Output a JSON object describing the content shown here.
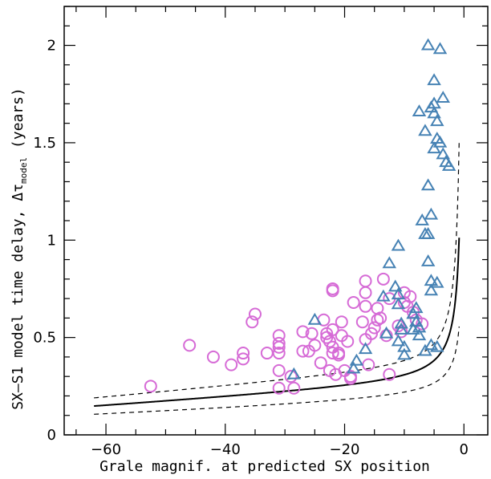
{
  "chart_data": {
    "type": "scatter",
    "xlabel": "Grale magnif. at predicted SX position",
    "ylabel_prefix": "SX–S1 model time delay, Δτ",
    "ylabel_subscript": "model",
    "ylabel_suffix": " (years)",
    "xlim": [
      -67,
      4
    ],
    "ylim": [
      0,
      2.2
    ],
    "x_ticks": [
      -60,
      -40,
      -20,
      0
    ],
    "y_ticks": [
      0,
      0.5,
      1,
      1.5,
      2
    ],
    "x_tick_labels": [
      "−60",
      "−40",
      "−20",
      "0"
    ],
    "y_tick_labels": [
      "0",
      "0.5",
      "1",
      "1.5",
      "2"
    ],
    "grid": false,
    "legend": "none",
    "colors": {
      "circles": "#d66bd6",
      "triangles": "#4682b4",
      "curve": "#000000"
    },
    "series": [
      {
        "marker": "circle",
        "points": [
          [
            -52.5,
            0.25
          ],
          [
            -46,
            0.46
          ],
          [
            -42,
            0.4
          ],
          [
            -39,
            0.36
          ],
          [
            -37,
            0.42
          ],
          [
            -37,
            0.39
          ],
          [
            -35,
            0.62
          ],
          [
            -35.5,
            0.58
          ],
          [
            -33,
            0.42
          ],
          [
            -31,
            0.51
          ],
          [
            -31,
            0.47
          ],
          [
            -31,
            0.45
          ],
          [
            -31,
            0.42
          ],
          [
            -31,
            0.33
          ],
          [
            -31,
            0.24
          ],
          [
            -28.5,
            0.24
          ],
          [
            -29,
            0.3
          ],
          [
            -27,
            0.53
          ],
          [
            -27,
            0.43
          ],
          [
            -26,
            0.43
          ],
          [
            -25.5,
            0.52
          ],
          [
            -25,
            0.46
          ],
          [
            -24,
            0.37
          ],
          [
            -23.5,
            0.59
          ],
          [
            -23,
            0.52
          ],
          [
            -23,
            0.5
          ],
          [
            -22.5,
            0.48
          ],
          [
            -22,
            0.54
          ],
          [
            -22,
            0.45
          ],
          [
            -22,
            0.42
          ],
          [
            -22.5,
            0.33
          ],
          [
            -22,
            0.75
          ],
          [
            -22,
            0.74
          ],
          [
            -21.5,
            0.31
          ],
          [
            -21,
            0.42
          ],
          [
            -21,
            0.41
          ],
          [
            -20.5,
            0.58
          ],
          [
            -20.5,
            0.51
          ],
          [
            -20,
            0.33
          ],
          [
            -19.5,
            0.48
          ],
          [
            -19,
            0.3
          ],
          [
            -19,
            0.29
          ],
          [
            -18.5,
            0.68
          ],
          [
            -17,
            0.58
          ],
          [
            -16.5,
            0.79
          ],
          [
            -16.5,
            0.73
          ],
          [
            -16.5,
            0.66
          ],
          [
            -16.5,
            0.49
          ],
          [
            -16,
            0.36
          ],
          [
            -15.5,
            0.52
          ],
          [
            -15,
            0.55
          ],
          [
            -14.5,
            0.59
          ],
          [
            -14.5,
            0.65
          ],
          [
            -14,
            0.6
          ],
          [
            -13.5,
            0.8
          ],
          [
            -13,
            0.51
          ],
          [
            -12.5,
            0.7
          ],
          [
            -12.5,
            0.31
          ],
          [
            -11,
            0.56
          ],
          [
            -10.5,
            0.53
          ],
          [
            -10,
            0.73
          ],
          [
            -10,
            0.68
          ],
          [
            -9.5,
            0.66
          ],
          [
            -9,
            0.71
          ],
          [
            -8.5,
            0.63
          ],
          [
            -8,
            0.59
          ],
          [
            -7,
            0.57
          ]
        ]
      },
      {
        "marker": "triangle",
        "points": [
          [
            -28.5,
            0.31
          ],
          [
            -25,
            0.59
          ],
          [
            -18.5,
            0.34
          ],
          [
            -18,
            0.38
          ],
          [
            -16.5,
            0.44
          ],
          [
            -13.5,
            0.71
          ],
          [
            -13,
            0.52
          ],
          [
            -12.5,
            0.88
          ],
          [
            -11.5,
            0.76
          ],
          [
            -11,
            0.72
          ],
          [
            -11,
            0.67
          ],
          [
            -11,
            0.48
          ],
          [
            -11,
            0.97
          ],
          [
            -10.5,
            0.57
          ],
          [
            -10.5,
            0.54
          ],
          [
            -10,
            0.45
          ],
          [
            -10,
            0.41
          ],
          [
            -8.5,
            0.62
          ],
          [
            -8.5,
            0.54
          ],
          [
            -8,
            0.65
          ],
          [
            -8,
            0.58
          ],
          [
            -7.5,
            0.55
          ],
          [
            -7.5,
            0.51
          ],
          [
            -7.5,
            1.66
          ],
          [
            -7,
            1.1
          ],
          [
            -6.5,
            1.03
          ],
          [
            -6.5,
            0.43
          ],
          [
            -6.5,
            1.56
          ],
          [
            -6,
            2.0
          ],
          [
            -6,
            1.28
          ],
          [
            -6,
            1.03
          ],
          [
            -6,
            0.89
          ],
          [
            -5.5,
            0.79
          ],
          [
            -5.5,
            0.74
          ],
          [
            -5.5,
            1.68
          ],
          [
            -5.5,
            0.46
          ],
          [
            -5.5,
            1.13
          ],
          [
            -5,
            1.82
          ],
          [
            -5,
            1.7
          ],
          [
            -5,
            1.65
          ],
          [
            -5,
            1.47
          ],
          [
            -4.5,
            1.52
          ],
          [
            -4.5,
            1.61
          ],
          [
            -4.5,
            0.78
          ],
          [
            -4.5,
            0.45
          ],
          [
            -4,
            1.98
          ],
          [
            -4,
            1.5
          ],
          [
            -3.5,
            1.73
          ],
          [
            -3.5,
            1.44
          ],
          [
            -3,
            1.4
          ],
          [
            -2.5,
            1.38
          ]
        ]
      }
    ],
    "curves": [
      {
        "style": "solid",
        "a": 0.61,
        "b": 0.95
      },
      {
        "style": "dashed",
        "a": 0.33,
        "b": 0.72
      },
      {
        "style": "dashed",
        "a": 0.89,
        "b": 1.18
      }
    ]
  }
}
